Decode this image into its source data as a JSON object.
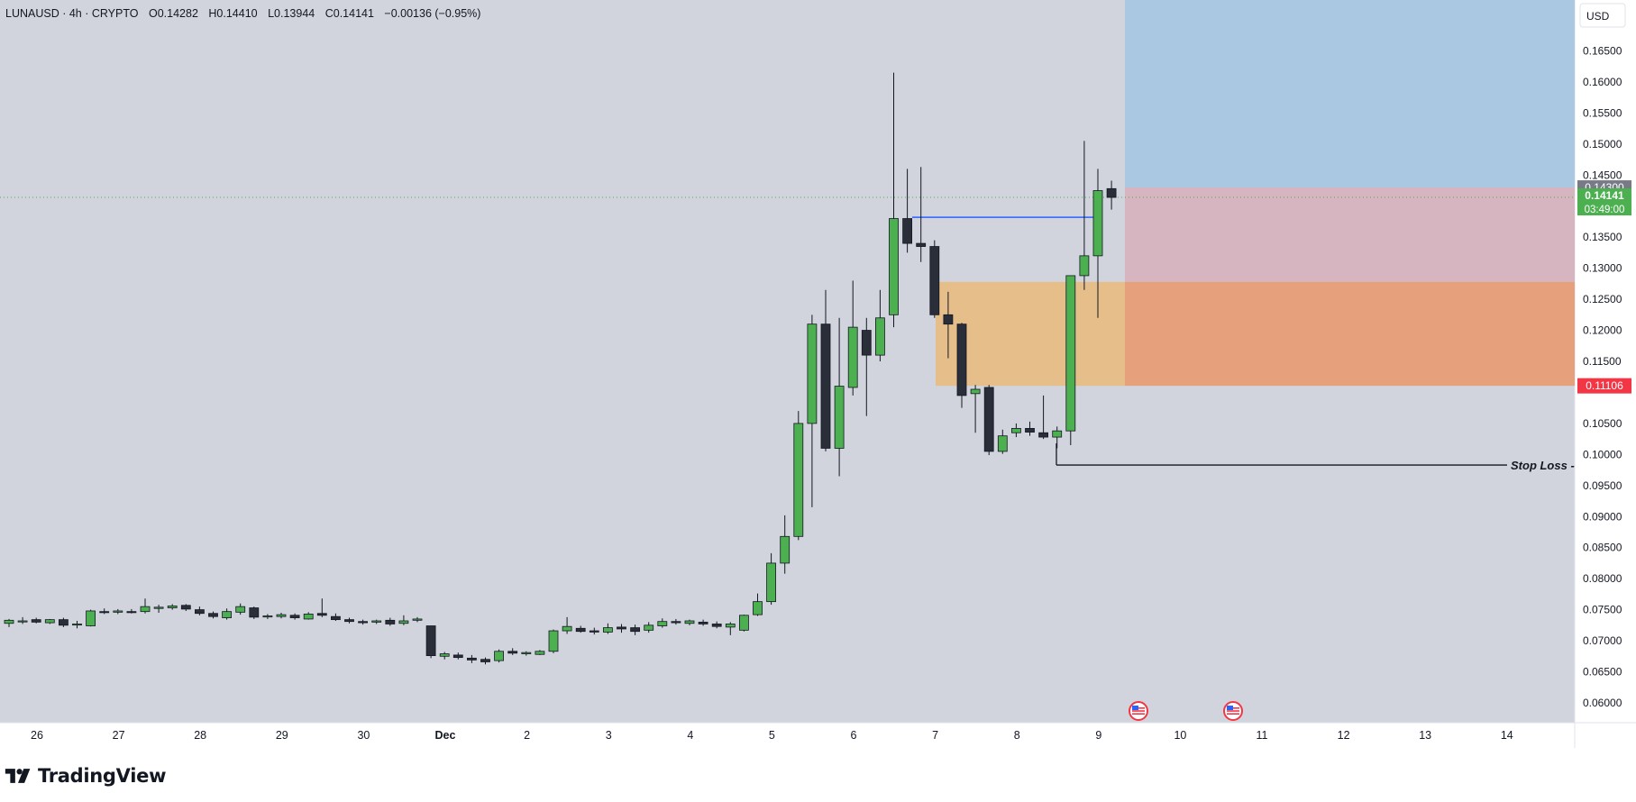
{
  "header": {
    "symbol_line": "LUNAUSD · 4h · CRYPTO",
    "open": "O0.14282",
    "high": "H0.14410",
    "low": "L0.13944",
    "close": "C0.14141",
    "change": "−0.00136 (−0.95%)"
  },
  "price_axis": {
    "currency": "USD",
    "ticks": [
      "0.16500",
      "0.16000",
      "0.15500",
      "0.15000",
      "0.14500",
      "0.13500",
      "0.13000",
      "0.12500",
      "0.12000",
      "0.11500",
      "0.10500",
      "0.10000",
      "0.09500",
      "0.09000",
      "0.08500",
      "0.08000",
      "0.07500",
      "0.07000",
      "0.06500",
      "0.06000"
    ]
  },
  "labels": {
    "entry_price": "0.14300",
    "last_price": "0.14141",
    "countdown": "03:49:00",
    "stop_price": "0.11106",
    "stop_loss": "Stop Loss -"
  },
  "brand": {
    "name": "TradingView"
  },
  "colors": {
    "background": "#d1d4dc",
    "up": "#4caf50",
    "down": "#2a2e39",
    "target_zone": "#aac8e2",
    "risk_zone": "#d6b4c0",
    "demand_zone": "#e6be8a",
    "overlap_zone": "#e6a07b",
    "blue_line": "#2962ff",
    "last_price_badge": "#4caf50",
    "stop_badge": "#f23645"
  },
  "chart_data": {
    "type": "candlestick",
    "symbol": "LUNAUSD",
    "interval": "4h",
    "ylim": [
      0.0568,
      0.1732
    ],
    "yticks": [
      0.165,
      0.16,
      0.155,
      0.15,
      0.145,
      0.135,
      0.13,
      0.125,
      0.12,
      0.115,
      0.105,
      0.1,
      0.095,
      0.09,
      0.085,
      0.08,
      0.075,
      0.07,
      0.065,
      0.06
    ],
    "x_labels": [
      "26",
      "27",
      "28",
      "29",
      "30",
      "Dec",
      "2",
      "3",
      "4",
      "5",
      "6",
      "7",
      "8",
      "9",
      "10",
      "11",
      "12",
      "13",
      "14"
    ],
    "candles": [
      {
        "o": 0.0728,
        "h": 0.0735,
        "l": 0.0722,
        "c": 0.0733
      },
      {
        "o": 0.0731,
        "h": 0.0738,
        "l": 0.0727,
        "c": 0.0732
      },
      {
        "o": 0.0734,
        "h": 0.0737,
        "l": 0.0728,
        "c": 0.073
      },
      {
        "o": 0.0729,
        "h": 0.0735,
        "l": 0.0727,
        "c": 0.0734
      },
      {
        "o": 0.0734,
        "h": 0.0737,
        "l": 0.0722,
        "c": 0.0725
      },
      {
        "o": 0.0726,
        "h": 0.0732,
        "l": 0.072,
        "c": 0.0727
      },
      {
        "o": 0.0724,
        "h": 0.075,
        "l": 0.0723,
        "c": 0.0748
      },
      {
        "o": 0.0747,
        "h": 0.0752,
        "l": 0.0743,
        "c": 0.0746
      },
      {
        "o": 0.0746,
        "h": 0.0751,
        "l": 0.0743,
        "c": 0.0748
      },
      {
        "o": 0.0747,
        "h": 0.0751,
        "l": 0.0744,
        "c": 0.0746
      },
      {
        "o": 0.0747,
        "h": 0.0768,
        "l": 0.0744,
        "c": 0.0755
      },
      {
        "o": 0.0752,
        "h": 0.0758,
        "l": 0.0745,
        "c": 0.0754
      },
      {
        "o": 0.0753,
        "h": 0.0759,
        "l": 0.075,
        "c": 0.0756
      },
      {
        "o": 0.0757,
        "h": 0.0759,
        "l": 0.0748,
        "c": 0.0751
      },
      {
        "o": 0.075,
        "h": 0.0755,
        "l": 0.0741,
        "c": 0.0744
      },
      {
        "o": 0.0744,
        "h": 0.0747,
        "l": 0.0736,
        "c": 0.0739
      },
      {
        "o": 0.0737,
        "h": 0.0752,
        "l": 0.0734,
        "c": 0.0747
      },
      {
        "o": 0.0746,
        "h": 0.076,
        "l": 0.0742,
        "c": 0.0755
      },
      {
        "o": 0.0753,
        "h": 0.0755,
        "l": 0.0735,
        "c": 0.0738
      },
      {
        "o": 0.0739,
        "h": 0.0743,
        "l": 0.0735,
        "c": 0.074
      },
      {
        "o": 0.0739,
        "h": 0.0745,
        "l": 0.0736,
        "c": 0.0742
      },
      {
        "o": 0.0741,
        "h": 0.0744,
        "l": 0.0734,
        "c": 0.0737
      },
      {
        "o": 0.0735,
        "h": 0.0746,
        "l": 0.0734,
        "c": 0.0743
      },
      {
        "o": 0.0744,
        "h": 0.0768,
        "l": 0.0738,
        "c": 0.0741
      },
      {
        "o": 0.0739,
        "h": 0.0744,
        "l": 0.0732,
        "c": 0.0734
      },
      {
        "o": 0.0734,
        "h": 0.0737,
        "l": 0.0728,
        "c": 0.0731
      },
      {
        "o": 0.0731,
        "h": 0.0734,
        "l": 0.0726,
        "c": 0.0729
      },
      {
        "o": 0.073,
        "h": 0.0734,
        "l": 0.0727,
        "c": 0.0732
      },
      {
        "o": 0.0733,
        "h": 0.0737,
        "l": 0.0724,
        "c": 0.0727
      },
      {
        "o": 0.0728,
        "h": 0.0741,
        "l": 0.0725,
        "c": 0.0732
      },
      {
        "o": 0.0733,
        "h": 0.0738,
        "l": 0.073,
        "c": 0.0735
      },
      {
        "o": 0.0724,
        "h": 0.0724,
        "l": 0.0672,
        "c": 0.0676
      },
      {
        "o": 0.0675,
        "h": 0.0682,
        "l": 0.067,
        "c": 0.0679
      },
      {
        "o": 0.0677,
        "h": 0.0681,
        "l": 0.067,
        "c": 0.0673
      },
      {
        "o": 0.0672,
        "h": 0.0677,
        "l": 0.0664,
        "c": 0.0669
      },
      {
        "o": 0.067,
        "h": 0.0673,
        "l": 0.0662,
        "c": 0.0666
      },
      {
        "o": 0.0668,
        "h": 0.0686,
        "l": 0.0665,
        "c": 0.0683
      },
      {
        "o": 0.0683,
        "h": 0.0688,
        "l": 0.0677,
        "c": 0.068
      },
      {
        "o": 0.0679,
        "h": 0.0683,
        "l": 0.0676,
        "c": 0.0681
      },
      {
        "o": 0.0678,
        "h": 0.0685,
        "l": 0.0677,
        "c": 0.0683
      },
      {
        "o": 0.0683,
        "h": 0.0718,
        "l": 0.068,
        "c": 0.0716
      },
      {
        "o": 0.0716,
        "h": 0.0738,
        "l": 0.0711,
        "c": 0.0723
      },
      {
        "o": 0.072,
        "h": 0.0724,
        "l": 0.0713,
        "c": 0.0715
      },
      {
        "o": 0.0716,
        "h": 0.0721,
        "l": 0.071,
        "c": 0.0714
      },
      {
        "o": 0.0714,
        "h": 0.0728,
        "l": 0.0711,
        "c": 0.0721
      },
      {
        "o": 0.0722,
        "h": 0.0727,
        "l": 0.0713,
        "c": 0.0719
      },
      {
        "o": 0.0721,
        "h": 0.0726,
        "l": 0.0709,
        "c": 0.0715
      },
      {
        "o": 0.0717,
        "h": 0.073,
        "l": 0.0713,
        "c": 0.0725
      },
      {
        "o": 0.0724,
        "h": 0.0736,
        "l": 0.0721,
        "c": 0.0731
      },
      {
        "o": 0.0731,
        "h": 0.0735,
        "l": 0.0726,
        "c": 0.0729
      },
      {
        "o": 0.0728,
        "h": 0.0734,
        "l": 0.0725,
        "c": 0.0732
      },
      {
        "o": 0.073,
        "h": 0.0734,
        "l": 0.0724,
        "c": 0.0727
      },
      {
        "o": 0.0727,
        "h": 0.0731,
        "l": 0.072,
        "c": 0.0723
      },
      {
        "o": 0.0722,
        "h": 0.073,
        "l": 0.0709,
        "c": 0.0727
      },
      {
        "o": 0.0717,
        "h": 0.0742,
        "l": 0.0715,
        "c": 0.0741
      },
      {
        "o": 0.0742,
        "h": 0.0776,
        "l": 0.074,
        "c": 0.0763
      },
      {
        "o": 0.0763,
        "h": 0.0841,
        "l": 0.0758,
        "c": 0.0825
      },
      {
        "o": 0.0825,
        "h": 0.0902,
        "l": 0.0808,
        "c": 0.0868
      },
      {
        "o": 0.0868,
        "h": 0.107,
        "l": 0.0862,
        "c": 0.105
      },
      {
        "o": 0.105,
        "h": 0.1225,
        "l": 0.0915,
        "c": 0.121
      },
      {
        "o": 0.121,
        "h": 0.1265,
        "l": 0.1005,
        "c": 0.101
      },
      {
        "o": 0.101,
        "h": 0.122,
        "l": 0.0965,
        "c": 0.111
      },
      {
        "o": 0.1108,
        "h": 0.128,
        "l": 0.1095,
        "c": 0.1205
      },
      {
        "o": 0.12,
        "h": 0.122,
        "l": 0.1062,
        "c": 0.116
      },
      {
        "o": 0.116,
        "h": 0.1265,
        "l": 0.115,
        "c": 0.122
      },
      {
        "o": 0.1225,
        "h": 0.1615,
        "l": 0.1205,
        "c": 0.138
      },
      {
        "o": 0.138,
        "h": 0.146,
        "l": 0.1325,
        "c": 0.134
      },
      {
        "o": 0.134,
        "h": 0.1463,
        "l": 0.131,
        "c": 0.1335
      },
      {
        "o": 0.1335,
        "h": 0.1345,
        "l": 0.122,
        "c": 0.1225
      },
      {
        "o": 0.1225,
        "h": 0.1262,
        "l": 0.1155,
        "c": 0.121
      },
      {
        "o": 0.121,
        "h": 0.1212,
        "l": 0.1075,
        "c": 0.1095
      },
      {
        "o": 0.1098,
        "h": 0.1112,
        "l": 0.1035,
        "c": 0.1105
      },
      {
        "o": 0.1108,
        "h": 0.1112,
        "l": 0.0999,
        "c": 0.1005
      },
      {
        "o": 0.1005,
        "h": 0.104,
        "l": 0.1001,
        "c": 0.103
      },
      {
        "o": 0.1035,
        "h": 0.105,
        "l": 0.1028,
        "c": 0.1042
      },
      {
        "o": 0.1042,
        "h": 0.1053,
        "l": 0.103,
        "c": 0.1036
      },
      {
        "o": 0.1035,
        "h": 0.1095,
        "l": 0.1025,
        "c": 0.1028
      },
      {
        "o": 0.1028,
        "h": 0.1045,
        "l": 0.101,
        "c": 0.1038
      },
      {
        "o": 0.1038,
        "h": 0.1288,
        "l": 0.1015,
        "c": 0.1288
      },
      {
        "o": 0.1288,
        "h": 0.1505,
        "l": 0.1265,
        "c": 0.132
      },
      {
        "o": 0.132,
        "h": 0.146,
        "l": 0.122,
        "c": 0.1425
      },
      {
        "o": 0.14282,
        "h": 0.1441,
        "l": 0.13944,
        "c": 0.14141
      }
    ],
    "annotations": {
      "target_zone": [
        0.143,
        0.1732
      ],
      "risk_zone": [
        0.1278,
        0.143
      ],
      "demand_zone": [
        0.11106,
        0.1278
      ],
      "blue_line": 0.1382,
      "stop_loss": 0.0983,
      "entry": 0.143,
      "stop": 0.11106,
      "last_price": 0.14141
    }
  }
}
